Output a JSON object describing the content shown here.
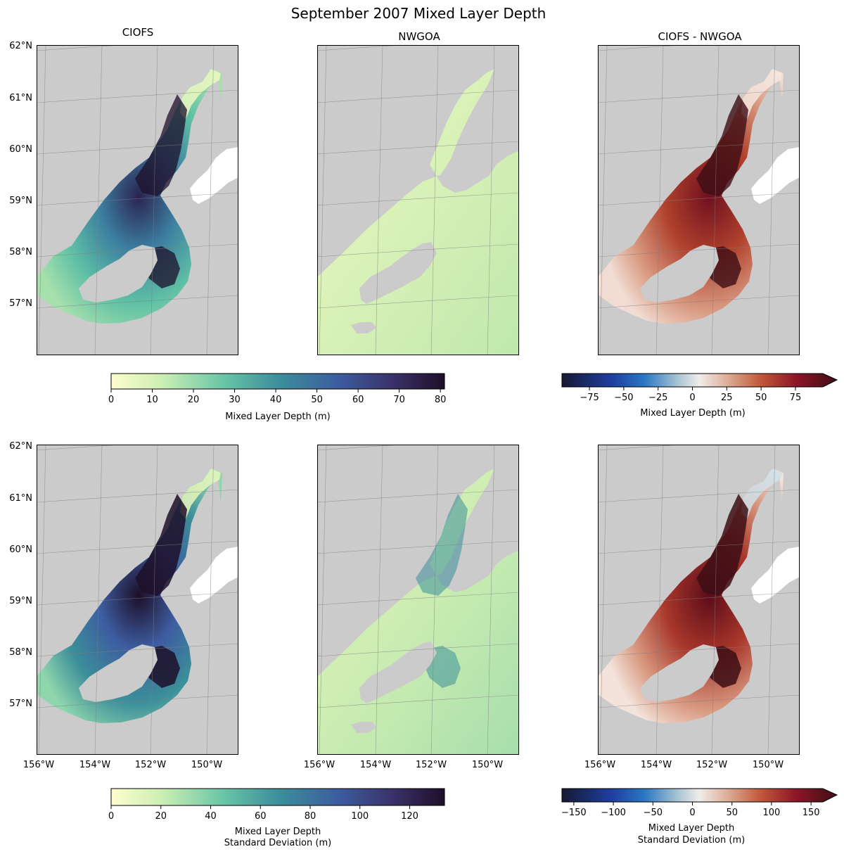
{
  "figure": {
    "title": "September 2007 Mixed Layer Depth"
  },
  "columns": [
    {
      "title": "CIOFS"
    },
    {
      "title": "NWGOA"
    },
    {
      "title": "CIOFS - NWGOA"
    }
  ],
  "map_axes": {
    "lat_ticks": [
      "62°N",
      "61°N",
      "60°N",
      "59°N",
      "58°N",
      "57°N"
    ],
    "lon_ticks": [
      "156°W",
      "154°W",
      "152°W",
      "150°W"
    ]
  },
  "colors": {
    "land": "#cbcbcb",
    "gridline": "#7f7f7f",
    "sequential_low": "#fdfecc",
    "sequential_high": "#1d0f29",
    "diverging_low": "#171932",
    "diverging_mid": "#f0ece9",
    "diverging_high": "#3d0e15"
  },
  "chart_data": [
    {
      "type": "heatmap",
      "row": 1,
      "description_title": "CIOFS",
      "colorbar": {
        "label": "Mixed Layer Depth (m)",
        "range": [
          0,
          81
        ],
        "ticks": [
          "0",
          "10",
          "20",
          "30",
          "40",
          "50",
          "60",
          "70",
          "80"
        ],
        "tick_values": [
          0,
          10,
          20,
          30,
          40,
          50,
          60,
          70,
          80
        ],
        "cmap": "sequential",
        "extend": "neither"
      }
    },
    {
      "type": "heatmap",
      "row": 1,
      "description_title": "NWGOA",
      "colorbar": "shared with CIOFS"
    },
    {
      "type": "heatmap",
      "row": 1,
      "description_title": "CIOFS - NWGOA",
      "colorbar": {
        "label": "Mixed Layer Depth (m)",
        "range": [
          -95,
          95
        ],
        "ticks": [
          "−75",
          "−50",
          "−25",
          "0",
          "25",
          "50",
          "75"
        ],
        "tick_values": [
          -75,
          -50,
          -25,
          0,
          25,
          50,
          75
        ],
        "cmap": "diverging",
        "extend": "max"
      }
    },
    {
      "type": "heatmap",
      "row": 2,
      "colorbar": {
        "label_line1": "Mixed Layer Depth",
        "label_line2": "Standard Deviation (m)",
        "range": [
          0,
          134
        ],
        "ticks": [
          "0",
          "20",
          "40",
          "60",
          "80",
          "100",
          "120"
        ],
        "tick_values": [
          0,
          20,
          40,
          60,
          80,
          100,
          120
        ],
        "cmap": "sequential",
        "extend": "neither"
      }
    },
    {
      "type": "heatmap",
      "row": 2,
      "colorbar": {
        "label_line1": "Mixed Layer Depth",
        "label_line2": "Standard Deviation (m)",
        "range": [
          -165,
          165
        ],
        "ticks": [
          "−150",
          "−100",
          "−50",
          "0",
          "50",
          "100",
          "150"
        ],
        "tick_values": [
          -150,
          -100,
          -50,
          0,
          50,
          100,
          150
        ],
        "cmap": "diverging",
        "extend": "max"
      }
    }
  ]
}
